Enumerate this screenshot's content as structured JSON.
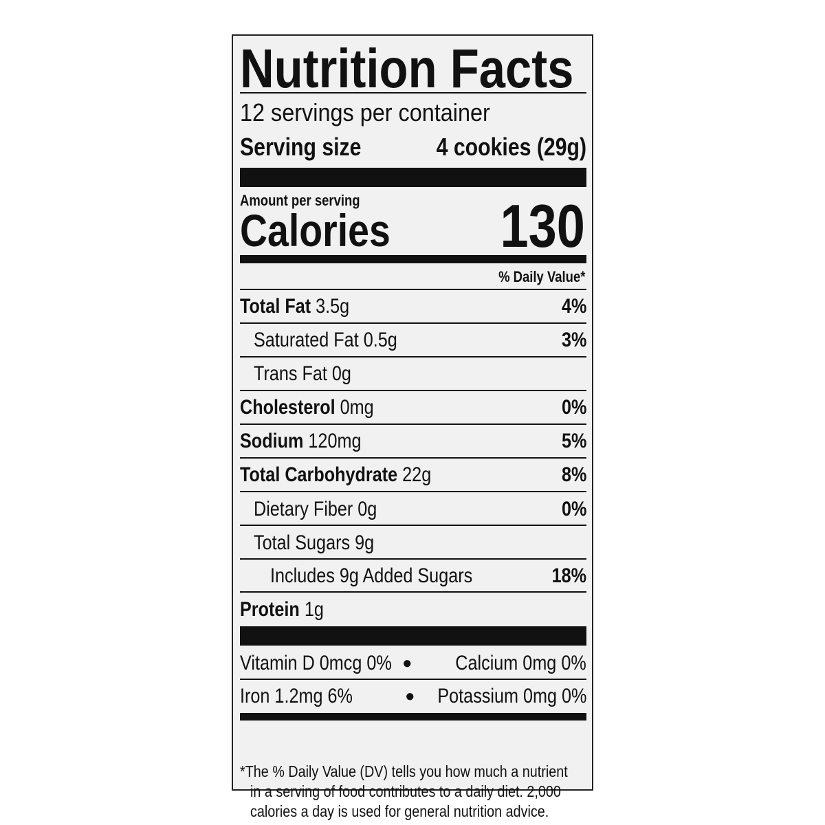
{
  "title": "Nutrition Facts",
  "servings_per_container": "12 servings per container",
  "serving_size": {
    "label": "Serving size",
    "value": "4 cookies (29g)"
  },
  "amount_per_serving": "Amount per serving",
  "calories": {
    "label": "Calories",
    "value": "130"
  },
  "daily_value_header": "% Daily Value*",
  "nutrients": [
    {
      "name": "Total Fat",
      "amount": "3.5g",
      "dv": "4%"
    },
    {
      "name": "Saturated Fat",
      "amount": "0.5g",
      "dv": "3%"
    },
    {
      "name": "Trans Fat",
      "amount": "0g",
      "dv": ""
    },
    {
      "name": "Cholesterol",
      "amount": "0mg",
      "dv": "0%"
    },
    {
      "name": "Sodium",
      "amount": "120mg",
      "dv": "5%"
    },
    {
      "name": "Total Carbohydrate",
      "amount": "22g",
      "dv": "8%"
    },
    {
      "name": "Dietary Fiber",
      "amount": "0g",
      "dv": "0%"
    },
    {
      "name": "Total Sugars",
      "amount": "9g",
      "dv": ""
    },
    {
      "name": "Includes 9g Added Sugars",
      "amount": "",
      "dv": "18%"
    },
    {
      "name": "Protein",
      "amount": "1g",
      "dv": ""
    }
  ],
  "micronutrients": [
    {
      "left": "Vitamin D 0mcg 0%",
      "right": "Calcium 0mg 0%"
    },
    {
      "left": "Iron 1.2mg 6%",
      "right": "Potassium 0mg 0%"
    }
  ],
  "footnote": [
    "*The % Daily Value (DV) tells you how much a nutrient",
    "in a serving of food contributes to a daily diet. 2,000",
    "calories a day is used for general nutrition advice."
  ]
}
